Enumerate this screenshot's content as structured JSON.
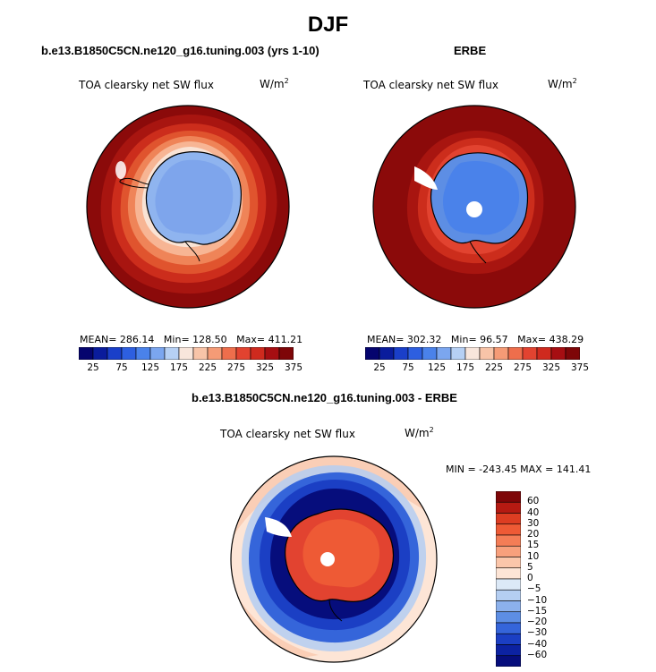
{
  "figure": {
    "title": "DJF",
    "panels": [
      {
        "title": "b.e13.B1850C5CN.ne120_g16.tuning.003 (yrs 1-10)",
        "variable": "TOA clearsky net SW flux",
        "units": "W/m",
        "units_exp": "2",
        "mean_label": "MEAN=",
        "mean": "286.14",
        "min_label": "Min=",
        "min": "128.50",
        "max_label": "Max=",
        "max": "411.21"
      },
      {
        "title": "ERBE",
        "variable": "TOA clearsky net SW flux",
        "units": "W/m",
        "units_exp": "2",
        "mean_label": "MEAN=",
        "mean": "302.32",
        "min_label": "Min=",
        "min": "96.57",
        "max_label": "Max=",
        "max": "438.29"
      },
      {
        "title": "b.e13.B1850C5CN.ne120_g16.tuning.003 - ERBE",
        "variable": "TOA clearsky net SW flux",
        "units": "W/m",
        "units_exp": "2",
        "minmax": "MIN = -243.45  MAX = 141.41"
      }
    ],
    "abs_colorbar": {
      "colors": [
        "#05046e",
        "#0a1c9c",
        "#1a3fc9",
        "#2d5fe0",
        "#4a82ea",
        "#7ba6ef",
        "#b6d0f4",
        "#f8e6dc",
        "#f8c4a8",
        "#f59b76",
        "#ee6e4c",
        "#e24330",
        "#cf2a1e",
        "#a60e12",
        "#7e0608"
      ],
      "labels": [
        "25",
        "75",
        "125",
        "175",
        "225",
        "275",
        "325",
        "375"
      ]
    },
    "diff_colorbar": {
      "colors": [
        "#7e0608",
        "#b51a12",
        "#dd3d22",
        "#ee5a35",
        "#f47d56",
        "#f8a07c",
        "#fbc6aa",
        "#fde5d6",
        "#dce9f7",
        "#b4cef2",
        "#8cb1ec",
        "#5d8ee4",
        "#3565da",
        "#1b3fc4",
        "#0c22a2",
        "#060d7c"
      ],
      "labels": [
        "60",
        "40",
        "30",
        "20",
        "15",
        "10",
        "5",
        "0",
        "−5",
        "−10",
        "−15",
        "−20",
        "−30",
        "−40",
        "−60"
      ]
    }
  }
}
